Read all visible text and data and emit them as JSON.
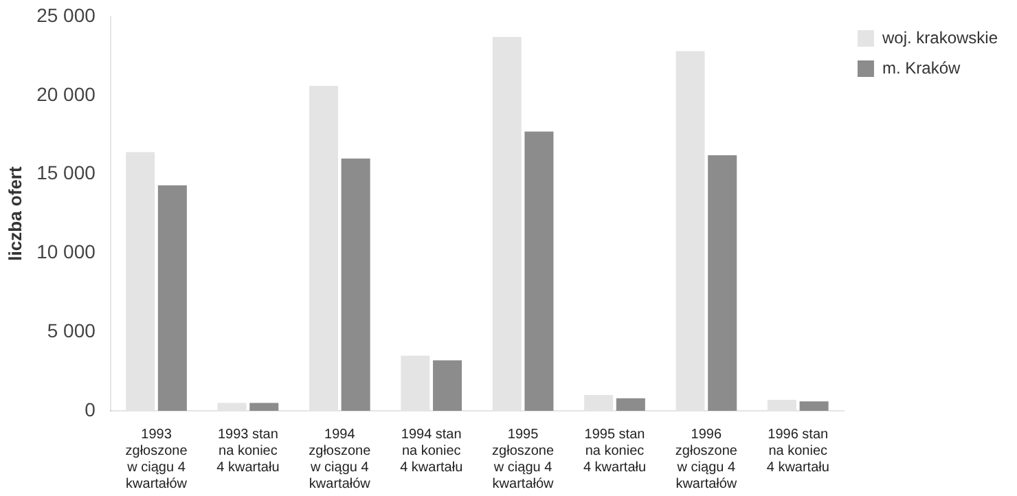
{
  "chart_data": {
    "type": "bar",
    "ylabel": "liczba ofert",
    "categories": [
      "1993\nzgłoszone\nw ciągu 4\nkwartałów",
      "1993 stan\nna koniec\n4 kwartału",
      "1994\nzgłoszone\nw ciągu 4\nkwartałów",
      "1994 stan\nna koniec\n4 kwartału",
      "1995\nzgłoszone\nw ciągu 4\nkwartałów",
      "1995 stan\nna koniec\n4 kwartału",
      "1996\nzgłoszone\nw ciągu 4\nkwartałów",
      "1996 stan\nna koniec\n4 kwartału"
    ],
    "series": [
      {
        "name": "woj. krakowskie",
        "color": "#e4e4e4",
        "values": [
          16400,
          500,
          20600,
          3500,
          23700,
          1000,
          22800,
          700
        ]
      },
      {
        "name": "m. Kraków",
        "color": "#8c8c8c",
        "values": [
          14300,
          500,
          16000,
          3200,
          17700,
          800,
          16200,
          600
        ]
      }
    ],
    "ylim": [
      0,
      25000
    ],
    "yticks": [
      {
        "value": 0,
        "label": "0"
      },
      {
        "value": 5000,
        "label": "5 000"
      },
      {
        "value": 10000,
        "label": "10 000"
      },
      {
        "value": 15000,
        "label": "15 000"
      },
      {
        "value": 20000,
        "label": "20 000"
      },
      {
        "value": 25000,
        "label": "25 000"
      }
    ],
    "grid": false,
    "legend": "top right"
  }
}
